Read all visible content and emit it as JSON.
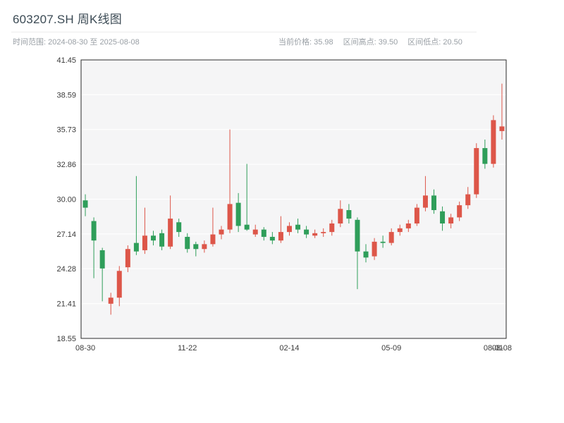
{
  "header": {
    "title": "603207.SH 周K线图",
    "subtitle_left": "时间范围: 2024-08-30 至 2025-08-08",
    "summary": [
      "当前价格: 35.98",
      "区间高点: 39.50",
      "区间低点: 20.50"
    ]
  },
  "chart_data": {
    "type": "candlestick",
    "title": "603207.SH 周K线图",
    "period": "weekly",
    "symbol": "603207.SH",
    "date_range": {
      "start": "2024-08-30",
      "end": "2025-08-08"
    },
    "current_price": 35.98,
    "range_high": 39.5,
    "range_low": 20.5,
    "ylim": [
      18.55,
      41.45
    ],
    "y_ticks": [
      "41.45",
      "38.59",
      "35.73",
      "32.86",
      "30.00",
      "27.14",
      "24.28",
      "21.41",
      "18.55"
    ],
    "x_tick_labels": [
      "08-30",
      "11-22",
      "02-14",
      "05-09",
      "08-01",
      "08-08"
    ],
    "x_tick_indices": [
      0,
      12,
      24,
      36,
      48,
      49
    ],
    "grid": true,
    "legend": false,
    "colors": {
      "up": "#dd5649",
      "down": "#2f9e5a",
      "panel_bg": "#f5f5f6",
      "grid": "#ffffff",
      "border": "#2b2b2b",
      "tick_text": "#3a3a3a"
    },
    "ohlc_format": [
      "open",
      "high",
      "low",
      "close"
    ],
    "candles": [
      [
        29.9,
        30.4,
        28.6,
        29.3
      ],
      [
        28.2,
        28.5,
        23.5,
        26.6
      ],
      [
        25.8,
        26.0,
        21.6,
        24.3
      ],
      [
        21.4,
        22.3,
        20.5,
        21.9
      ],
      [
        21.9,
        24.5,
        21.2,
        24.1
      ],
      [
        24.4,
        26.2,
        24.0,
        25.9
      ],
      [
        26.4,
        31.9,
        25.4,
        25.7
      ],
      [
        25.8,
        29.3,
        25.5,
        27.0
      ],
      [
        27.0,
        27.4,
        26.2,
        26.6
      ],
      [
        27.2,
        27.5,
        25.8,
        26.1
      ],
      [
        26.1,
        30.3,
        25.9,
        28.4
      ],
      [
        28.1,
        28.4,
        26.9,
        27.3
      ],
      [
        26.9,
        27.2,
        25.6,
        25.9
      ],
      [
        26.3,
        26.5,
        25.3,
        25.9
      ],
      [
        25.9,
        26.6,
        25.6,
        26.3
      ],
      [
        26.3,
        29.3,
        26.1,
        27.1
      ],
      [
        27.1,
        27.8,
        26.7,
        27.5
      ],
      [
        27.5,
        35.73,
        27.2,
        29.6
      ],
      [
        29.7,
        30.5,
        27.3,
        27.8
      ],
      [
        27.9,
        32.9,
        27.4,
        27.5
      ],
      [
        27.1,
        27.9,
        26.9,
        27.5
      ],
      [
        27.5,
        27.7,
        26.6,
        26.9
      ],
      [
        26.9,
        27.3,
        26.3,
        26.6
      ],
      [
        26.6,
        28.6,
        26.4,
        27.3
      ],
      [
        27.3,
        28.1,
        27.0,
        27.8
      ],
      [
        27.9,
        28.4,
        27.2,
        27.5
      ],
      [
        27.5,
        27.8,
        26.8,
        27.1
      ],
      [
        27.0,
        27.5,
        26.8,
        27.2
      ],
      [
        27.2,
        27.6,
        26.9,
        27.3
      ],
      [
        27.3,
        28.3,
        27.0,
        28.0
      ],
      [
        28.0,
        29.9,
        27.7,
        29.2
      ],
      [
        29.1,
        29.6,
        28.0,
        28.4
      ],
      [
        28.3,
        28.5,
        22.6,
        25.7
      ],
      [
        25.7,
        26.3,
        24.8,
        25.2
      ],
      [
        25.3,
        26.8,
        25.0,
        26.5
      ],
      [
        26.5,
        27.0,
        26.0,
        26.4
      ],
      [
        26.4,
        27.6,
        26.2,
        27.3
      ],
      [
        27.3,
        27.9,
        27.0,
        27.6
      ],
      [
        27.6,
        28.3,
        27.3,
        28.0
      ],
      [
        28.0,
        29.6,
        27.8,
        29.3
      ],
      [
        29.3,
        31.9,
        29.0,
        30.3
      ],
      [
        30.3,
        30.8,
        28.8,
        29.1
      ],
      [
        29.0,
        29.4,
        27.4,
        28.0
      ],
      [
        28.0,
        28.8,
        27.6,
        28.5
      ],
      [
        28.5,
        29.8,
        28.2,
        29.5
      ],
      [
        29.5,
        31.0,
        29.2,
        30.4
      ],
      [
        30.4,
        34.6,
        30.1,
        34.2
      ],
      [
        34.2,
        34.9,
        32.5,
        32.9
      ],
      [
        32.9,
        36.9,
        32.6,
        36.5
      ],
      [
        35.6,
        39.5,
        34.9,
        35.98
      ]
    ]
  }
}
